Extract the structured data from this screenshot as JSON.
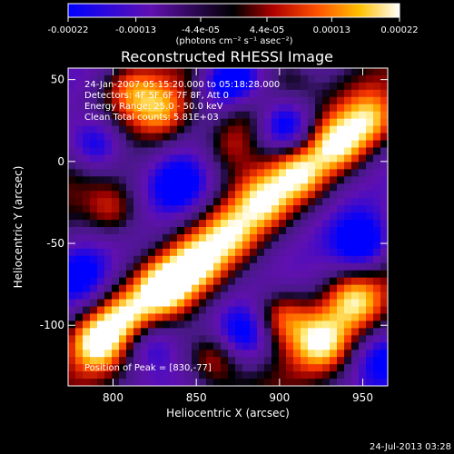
{
  "chart_data": {
    "type": "heatmap",
    "title": "Reconstructed RHESSI Image",
    "xlabel": "Heliocentric X (arcsec)",
    "ylabel": "Heliocentric Y (arcsec)",
    "xlim": [
      773,
      965
    ],
    "ylim": [
      -137,
      57
    ],
    "xticks": [
      800,
      850,
      900,
      950
    ],
    "yticks": [
      50,
      0,
      -50,
      -100
    ],
    "colorbar": {
      "range": [
        -0.00022,
        0.00022
      ],
      "ticks": [
        "-0.00022",
        "-0.00013",
        "-4.4e-05",
        "4.4e-05",
        "0.00013",
        "0.00022"
      ],
      "tick_values": [
        -0.00022,
        -0.00013,
        -4.4e-05,
        4.4e-05,
        0.00013,
        0.00022
      ],
      "label": "(photons cm⁻² s⁻¹ asec⁻²)",
      "colors": [
        "#0000ff",
        "#6010b0",
        "#000000",
        "#b00000",
        "#ff5000",
        "#ffc000",
        "#ffffff"
      ]
    },
    "annotations": [
      "24-Jan-2007 05:15:20.000 to 05:18:28.000",
      "Detectors: 4F 5F 6F 7F 8F, Att 0",
      "Energy Range: 25.0 - 50.0 keV",
      "Clean     Total counts: 5.81E+03"
    ],
    "peak_label": "Position of Peak = [830,-77]",
    "peak_position": [
      830,
      -77
    ],
    "ridges": [
      {
        "x": 790,
        "y": -110,
        "level": 0.9
      },
      {
        "x": 808,
        "y": -95,
        "level": 0.8
      },
      {
        "x": 830,
        "y": -77,
        "level": 1.0
      },
      {
        "x": 850,
        "y": -62,
        "level": 0.85
      },
      {
        "x": 870,
        "y": -45,
        "level": 0.7
      },
      {
        "x": 890,
        "y": -25,
        "level": 0.75
      },
      {
        "x": 912,
        "y": -8,
        "level": 0.8
      },
      {
        "x": 935,
        "y": 10,
        "level": 0.85
      },
      {
        "x": 955,
        "y": 25,
        "level": 0.7
      },
      {
        "x": 860,
        "y": -120,
        "level": 0.7
      },
      {
        "x": 900,
        "y": -95,
        "level": 0.75
      },
      {
        "x": 925,
        "y": -110,
        "level": 0.8
      },
      {
        "x": 945,
        "y": -85,
        "level": 0.7
      },
      {
        "x": 800,
        "y": -30,
        "level": 0.6
      },
      {
        "x": 830,
        "y": 30,
        "level": 0.55
      },
      {
        "x": 810,
        "y": 45,
        "level": 0.5
      },
      {
        "x": 880,
        "y": 30,
        "level": 0.5
      },
      {
        "x": 870,
        "y": 10,
        "level": 0.55
      },
      {
        "x": 905,
        "y": 50,
        "level": 0.45
      }
    ],
    "troughs": [
      {
        "x": 870,
        "y": 50,
        "level": -0.9
      },
      {
        "x": 905,
        "y": 20,
        "level": -0.8
      },
      {
        "x": 790,
        "y": 10,
        "level": -0.8
      },
      {
        "x": 840,
        "y": -15,
        "level": -0.6
      },
      {
        "x": 950,
        "y": -50,
        "level": -0.8
      },
      {
        "x": 820,
        "y": -110,
        "level": -0.6
      },
      {
        "x": 880,
        "y": -105,
        "level": -0.6
      },
      {
        "x": 960,
        "y": -120,
        "level": -0.5
      },
      {
        "x": 780,
        "y": -70,
        "level": -0.5
      }
    ]
  },
  "footer": {
    "timestamp": "24-Jul-2013 03:28"
  }
}
